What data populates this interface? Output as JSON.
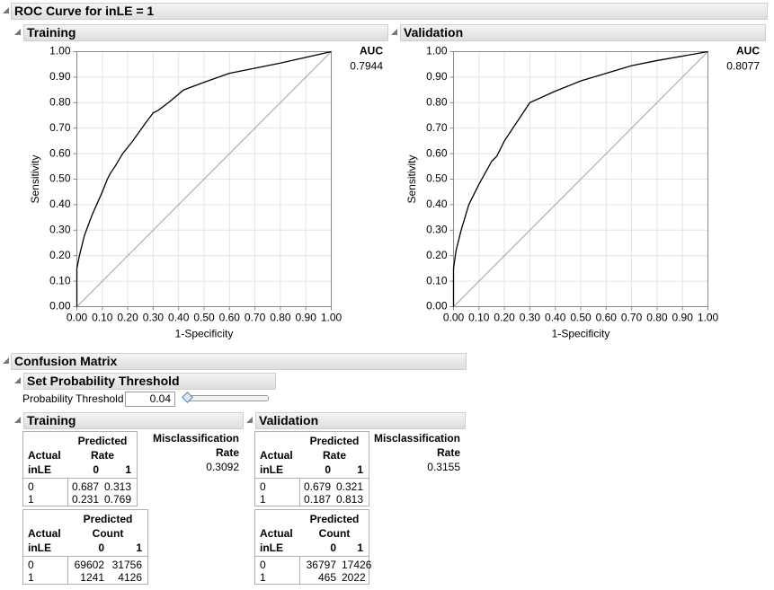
{
  "title": "ROC Curve for inLE = 1",
  "chart_data": [
    {
      "type": "line",
      "title": "Training",
      "x_label": "1-Specificity",
      "y_label": "Sensitivity",
      "auc_label": "AUC",
      "auc": 0.7944,
      "x": [
        0,
        0,
        0.01,
        0.03,
        0.06,
        0.1,
        0.12,
        0.13,
        0.15,
        0.18,
        0.22,
        0.27,
        0.3,
        0.32,
        0.36,
        0.42,
        0.5,
        0.6,
        0.8,
        1
      ],
      "values": [
        0,
        0.15,
        0.2,
        0.28,
        0.36,
        0.45,
        0.5,
        0.52,
        0.55,
        0.6,
        0.65,
        0.72,
        0.76,
        0.77,
        0.8,
        0.85,
        0.88,
        0.915,
        0.955,
        1
      ],
      "color": "#000000",
      "grid": true,
      "xlim": [
        0,
        1
      ],
      "ylim": [
        0,
        1
      ],
      "xticks": [
        {
          "value": 0,
          "label": "0.00"
        },
        {
          "value": 0.1,
          "label": "0.10"
        },
        {
          "value": 0.2,
          "label": "0.20"
        },
        {
          "value": 0.3,
          "label": "0.30"
        },
        {
          "value": 0.4,
          "label": "0.40"
        },
        {
          "value": 0.5,
          "label": "0.50"
        },
        {
          "value": 0.6,
          "label": "0.60"
        },
        {
          "value": 0.7,
          "label": "0.70"
        },
        {
          "value": 0.8,
          "label": "0.80"
        },
        {
          "value": 0.9,
          "label": "0.90"
        },
        {
          "value": 1,
          "label": "1.00"
        }
      ],
      "yticks": [
        {
          "value": 0,
          "label": "0.00"
        },
        {
          "value": 0.1,
          "label": "0.10"
        },
        {
          "value": 0.2,
          "label": "0.20"
        },
        {
          "value": 0.3,
          "label": "0.30"
        },
        {
          "value": 0.4,
          "label": "0.40"
        },
        {
          "value": 0.5,
          "label": "0.50"
        },
        {
          "value": 0.6,
          "label": "0.60"
        },
        {
          "value": 0.7,
          "label": "0.70"
        },
        {
          "value": 0.8,
          "label": "0.80"
        },
        {
          "value": 0.9,
          "label": "0.90"
        },
        {
          "value": 1,
          "label": "1.00"
        }
      ]
    },
    {
      "type": "line",
      "title": "Validation",
      "x_label": "1-Specificity",
      "y_label": "Sensitivity",
      "auc_label": "AUC",
      "auc": 0.8077,
      "x": [
        0,
        0,
        0.01,
        0.03,
        0.06,
        0.1,
        0.15,
        0.17,
        0.2,
        0.22,
        0.3,
        0.4,
        0.5,
        0.6,
        0.7,
        0.8,
        1
      ],
      "values": [
        0,
        0.15,
        0.22,
        0.3,
        0.4,
        0.48,
        0.57,
        0.59,
        0.65,
        0.68,
        0.8,
        0.845,
        0.885,
        0.915,
        0.945,
        0.965,
        1
      ],
      "color": "#000000",
      "grid": true,
      "xlim": [
        0,
        1
      ],
      "ylim": [
        0,
        1
      ],
      "xticks": [
        {
          "value": 0,
          "label": "0.00"
        },
        {
          "value": 0.1,
          "label": "0.10"
        },
        {
          "value": 0.2,
          "label": "0.20"
        },
        {
          "value": 0.3,
          "label": "0.30"
        },
        {
          "value": 0.4,
          "label": "0.40"
        },
        {
          "value": 0.5,
          "label": "0.50"
        },
        {
          "value": 0.6,
          "label": "0.60"
        },
        {
          "value": 0.7,
          "label": "0.70"
        },
        {
          "value": 0.8,
          "label": "0.80"
        },
        {
          "value": 0.9,
          "label": "0.90"
        },
        {
          "value": 1,
          "label": "1.00"
        }
      ],
      "yticks": [
        {
          "value": 0,
          "label": "0.00"
        },
        {
          "value": 0.1,
          "label": "0.10"
        },
        {
          "value": 0.2,
          "label": "0.20"
        },
        {
          "value": 0.3,
          "label": "0.30"
        },
        {
          "value": 0.4,
          "label": "0.40"
        },
        {
          "value": 0.5,
          "label": "0.50"
        },
        {
          "value": 0.6,
          "label": "0.60"
        },
        {
          "value": 0.7,
          "label": "0.70"
        },
        {
          "value": 0.8,
          "label": "0.80"
        },
        {
          "value": 0.9,
          "label": "0.90"
        },
        {
          "value": 1,
          "label": "1.00"
        }
      ]
    }
  ],
  "confusion_matrix": {
    "title": "Confusion Matrix",
    "threshold": {
      "title": "Set Probability Threshold",
      "label": "Probability Threshold",
      "value": 0.04
    },
    "panels": [
      {
        "title": "Training",
        "misclassification_label": [
          "Misclassification",
          "Rate"
        ],
        "misclassification_rate": 0.3092,
        "rate_table": {
          "actual_label": "Actual",
          "variable": "inLE",
          "predicted_label": [
            "Predicted",
            "Rate"
          ],
          "columns": [
            "0",
            "1"
          ],
          "rows": [
            {
              "label": "0",
              "values": [
                0.687,
                0.313
              ]
            },
            {
              "label": "1",
              "values": [
                0.231,
                0.769
              ]
            }
          ]
        },
        "count_table": {
          "actual_label": "Actual",
          "variable": "inLE",
          "predicted_label": [
            "Predicted",
            "Count"
          ],
          "columns": [
            "0",
            "1"
          ],
          "rows": [
            {
              "label": "0",
              "values": [
                69602,
                31756
              ]
            },
            {
              "label": "1",
              "values": [
                1241,
                4126
              ]
            }
          ]
        }
      },
      {
        "title": "Validation",
        "misclassification_label": [
          "Misclassification",
          "Rate"
        ],
        "misclassification_rate": 0.3155,
        "rate_table": {
          "actual_label": "Actual",
          "variable": "inLE",
          "predicted_label": [
            "Predicted",
            "Rate"
          ],
          "columns": [
            "0",
            "1"
          ],
          "rows": [
            {
              "label": "0",
              "values": [
                0.679,
                0.321
              ]
            },
            {
              "label": "1",
              "values": [
                0.187,
                0.813
              ]
            }
          ]
        },
        "count_table": {
          "actual_label": "Actual",
          "variable": "inLE",
          "predicted_label": [
            "Predicted",
            "Count"
          ],
          "columns": [
            "0",
            "1"
          ],
          "rows": [
            {
              "label": "0",
              "values": [
                36797,
                17426
              ]
            },
            {
              "label": "1",
              "values": [
                465,
                2022
              ]
            }
          ]
        }
      }
    ]
  }
}
